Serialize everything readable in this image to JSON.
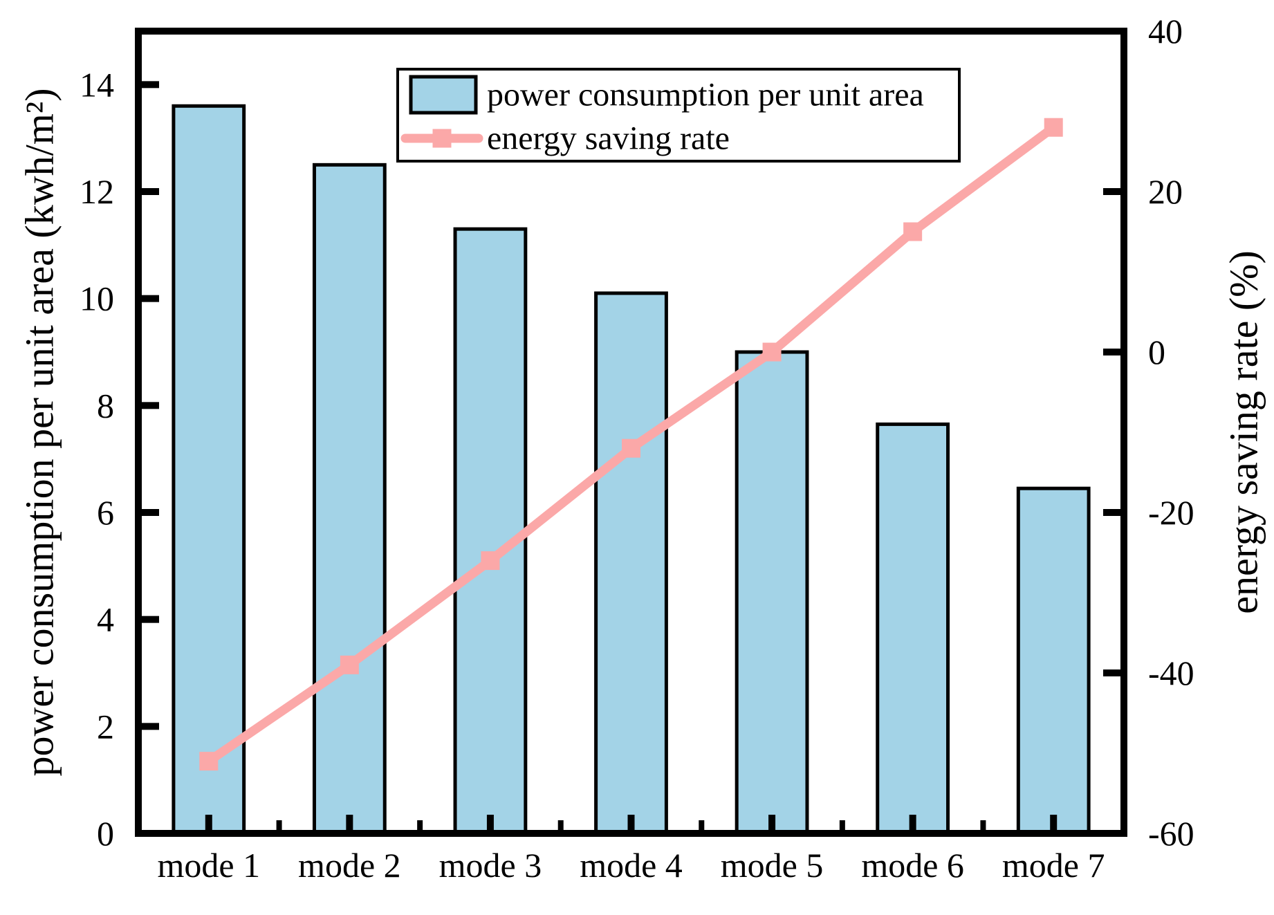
{
  "figure": {
    "background": "#FFFFFF",
    "border_color": "#000000"
  },
  "chart_data": {
    "type": "combo",
    "categories": [
      "mode 1",
      "mode 2",
      "mode 3",
      "mode 4",
      "mode 5",
      "mode 6",
      "mode 7"
    ],
    "series": [
      {
        "name": "power consumption per unit area",
        "type": "bar",
        "axis": "left",
        "values": [
          13.6,
          12.5,
          11.3,
          10.1,
          9.0,
          7.65,
          6.45
        ],
        "fill_color": "#A3D3E7",
        "edge_color": "#000000"
      },
      {
        "name": "energy saving rate",
        "type": "line",
        "axis": "right",
        "values": [
          -51,
          -39,
          -26,
          -12,
          0,
          15,
          28
        ],
        "color": "#FBA8A8",
        "marker": "square",
        "marker_color": "#FBA8A8"
      }
    ],
    "left_axis": {
      "label": "power consumption per unit area (kwh/m²)",
      "ticks": [
        0,
        2,
        4,
        6,
        8,
        10,
        12,
        14
      ],
      "range": [
        0,
        15
      ]
    },
    "right_axis": {
      "label": "energy saving rate (%)",
      "ticks": [
        40,
        20,
        0,
        -20,
        -40,
        -60
      ],
      "range": [
        -60,
        40
      ]
    },
    "legend": {
      "entries": [
        "power consumption per unit area",
        "energy saving rate"
      ],
      "position": "top-center",
      "border": true
    },
    "grid": false
  }
}
